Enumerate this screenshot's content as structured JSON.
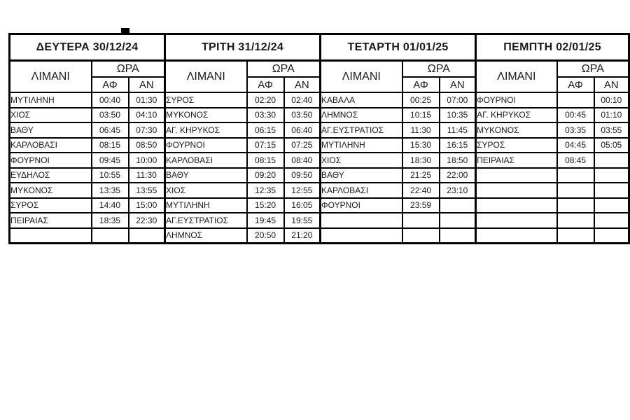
{
  "colors": {
    "background": "#ffffff",
    "border": "#000000",
    "text": "#1a1a1a"
  },
  "table": {
    "column_headers": {
      "port": "ΛΙΜΑΝΙ",
      "time": "ΩΡΑ",
      "arrival": "ΑΦ",
      "departure": "ΑΝ"
    },
    "days": [
      {
        "title": "ΔΕΥΤΕΡΑ 30/12/24",
        "rows": [
          {
            "port": "ΜΥΤΙΛΗΝΗ",
            "af": "00:40",
            "an": "01:30"
          },
          {
            "port": "ΧΙΟΣ",
            "af": "03:50",
            "an": "04:10"
          },
          {
            "port": "ΒΑΘΥ",
            "af": "06:45",
            "an": "07:30"
          },
          {
            "port": "ΚΑΡΛΟΒΑΣΙ",
            "af": "08:15",
            "an": "08:50"
          },
          {
            "port": "ΦΟΥΡΝΟΙ",
            "af": "09:45",
            "an": "10:00"
          },
          {
            "port": "ΕΥΔΗΛΟΣ",
            "af": "10:55",
            "an": "11:30"
          },
          {
            "port": "ΜΥΚΟΝΟΣ",
            "af": "13:35",
            "an": "13:55"
          },
          {
            "port": "ΣΥΡΟΣ",
            "af": "14:40",
            "an": "15:00"
          },
          {
            "port": "ΠΕΙΡΑΙΑΣ",
            "af": "18:35",
            "an": "22:30"
          },
          {
            "port": "",
            "af": "",
            "an": ""
          }
        ]
      },
      {
        "title": "ΤΡΙΤΗ 31/12/24",
        "rows": [
          {
            "port": "ΣΥΡΟΣ",
            "af": "02:20",
            "an": "02:40"
          },
          {
            "port": "ΜΥΚΟΝΟΣ",
            "af": "03:30",
            "an": "03:50"
          },
          {
            "port": "ΑΓ. ΚΗΡΥΚΟΣ",
            "af": "06:15",
            "an": "06:40"
          },
          {
            "port": "ΦΟΥΡΝΟΙ",
            "af": "07:15",
            "an": "07:25"
          },
          {
            "port": "ΚΑΡΛΟΒΑΣΙ",
            "af": "08:15",
            "an": "08:40"
          },
          {
            "port": "ΒΑΘΥ",
            "af": "09:20",
            "an": "09:50"
          },
          {
            "port": "ΧΙΟΣ",
            "af": "12:35",
            "an": "12:55"
          },
          {
            "port": "ΜΥΤΙΛΗΝΗ",
            "af": "15:20",
            "an": "16:05"
          },
          {
            "port": "ΑΓ.ΕΥΣΤΡΑΤΙΟΣ",
            "af": "19:45",
            "an": "19:55"
          },
          {
            "port": "ΛΗΜΝΟΣ",
            "af": "20:50",
            "an": "21:20"
          }
        ]
      },
      {
        "title": "ΤΕΤΑΡΤΗ 01/01/25",
        "rows": [
          {
            "port": "ΚΑΒΑΛΑ",
            "af": "00:25",
            "an": "07:00"
          },
          {
            "port": "ΛΗΜΝΟΣ",
            "af": "10:15",
            "an": "10:35"
          },
          {
            "port": "ΑΓ.ΕΥΣΤΡΑΤΙΟΣ",
            "af": "11:30",
            "an": "11:45"
          },
          {
            "port": "ΜΥΤΙΛΗΝΗ",
            "af": "15:30",
            "an": "16:15"
          },
          {
            "port": "ΧΙΟΣ",
            "af": "18:30",
            "an": "18:50"
          },
          {
            "port": "ΒΑΘΥ",
            "af": "21:25",
            "an": "22:00"
          },
          {
            "port": "ΚΑΡΛΟΒΑΣΙ",
            "af": "22:40",
            "an": "23:10"
          },
          {
            "port": "ΦΟΥΡΝΟΙ",
            "af": "23:59",
            "an": ""
          },
          {
            "port": "",
            "af": "",
            "an": ""
          },
          {
            "port": "",
            "af": "",
            "an": ""
          }
        ]
      },
      {
        "title": "ΠΕΜΠΤΗ 02/01/25",
        "rows": [
          {
            "port": "ΦΟΥΡΝΟΙ",
            "af": "",
            "an": "00:10"
          },
          {
            "port": "ΑΓ. ΚΗΡΥΚΟΣ",
            "af": "00:45",
            "an": "01:10"
          },
          {
            "port": "ΜΥΚΟΝΟΣ",
            "af": "03:35",
            "an": "03:55"
          },
          {
            "port": "ΣΥΡΟΣ",
            "af": "04:45",
            "an": "05:05"
          },
          {
            "port": "ΠΕΙΡΑΙΑΣ",
            "af": "08:45",
            "an": ""
          },
          {
            "port": "",
            "af": "",
            "an": ""
          },
          {
            "port": "",
            "af": "",
            "an": ""
          },
          {
            "port": "",
            "af": "",
            "an": ""
          },
          {
            "port": "",
            "af": "",
            "an": ""
          },
          {
            "port": "",
            "af": "",
            "an": ""
          }
        ]
      }
    ]
  }
}
